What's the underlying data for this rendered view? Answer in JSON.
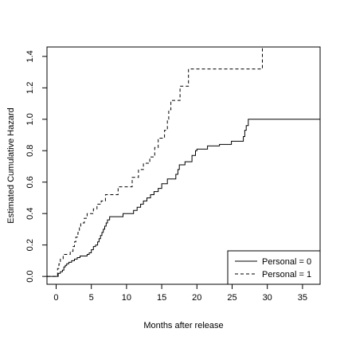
{
  "chart_data": {
    "type": "line",
    "title": "",
    "xlabel": "Months after release",
    "ylabel": "Estimated Cumulative Hazard",
    "xlim": [
      -1.3,
      37.5
    ],
    "ylim": [
      -0.05,
      1.46
    ],
    "xticks": [
      0,
      5,
      10,
      15,
      20,
      25,
      30,
      35
    ],
    "yticks": [
      0.0,
      0.2,
      0.4,
      0.6,
      0.8,
      1.0,
      1.2,
      1.4
    ],
    "xtick_labels": [
      "0",
      "5",
      "10",
      "15",
      "20",
      "25",
      "30",
      "35"
    ],
    "ytick_labels": [
      "0.0",
      "0.2",
      "0.4",
      "0.6",
      "0.8",
      "1.0",
      "1.2",
      "1.4"
    ],
    "grid": false,
    "legend_position": "bottom-right",
    "series": [
      {
        "name": "Personal = 0",
        "line_style": "solid",
        "color": "#000000",
        "step": true,
        "points": [
          [
            -1.3,
            0.0
          ],
          [
            0.2,
            0.0
          ],
          [
            0.3,
            0.02
          ],
          [
            0.6,
            0.03
          ],
          [
            0.9,
            0.04
          ],
          [
            1.1,
            0.06
          ],
          [
            1.3,
            0.07
          ],
          [
            1.5,
            0.08
          ],
          [
            1.8,
            0.09
          ],
          [
            2.2,
            0.1
          ],
          [
            2.6,
            0.11
          ],
          [
            3.0,
            0.12
          ],
          [
            3.4,
            0.13
          ],
          [
            4.4,
            0.14
          ],
          [
            4.7,
            0.15
          ],
          [
            5.0,
            0.17
          ],
          [
            5.3,
            0.19
          ],
          [
            5.6,
            0.2
          ],
          [
            5.9,
            0.22
          ],
          [
            6.1,
            0.24
          ],
          [
            6.3,
            0.26
          ],
          [
            6.5,
            0.28
          ],
          [
            6.7,
            0.3
          ],
          [
            6.9,
            0.32
          ],
          [
            7.1,
            0.34
          ],
          [
            7.3,
            0.36
          ],
          [
            7.6,
            0.38
          ],
          [
            9.5,
            0.4
          ],
          [
            11.0,
            0.42
          ],
          [
            11.5,
            0.44
          ],
          [
            12.0,
            0.46
          ],
          [
            12.4,
            0.48
          ],
          [
            12.9,
            0.5
          ],
          [
            13.4,
            0.52
          ],
          [
            13.9,
            0.54
          ],
          [
            14.5,
            0.56
          ],
          [
            15.0,
            0.59
          ],
          [
            15.8,
            0.62
          ],
          [
            17.0,
            0.65
          ],
          [
            17.3,
            0.68
          ],
          [
            17.5,
            0.71
          ],
          [
            18.3,
            0.73
          ],
          [
            19.3,
            0.77
          ],
          [
            19.8,
            0.8
          ],
          [
            20.0,
            0.81
          ],
          [
            21.5,
            0.83
          ],
          [
            23.2,
            0.84
          ],
          [
            24.9,
            0.86
          ],
          [
            26.6,
            0.89
          ],
          [
            26.8,
            0.93
          ],
          [
            27.0,
            0.96
          ],
          [
            27.3,
            1.0
          ],
          [
            37.5,
            1.0
          ]
        ]
      },
      {
        "name": "Personal = 1",
        "line_style": "dashed",
        "color": "#000000",
        "step": true,
        "points": [
          [
            -1.3,
            0.0
          ],
          [
            0.0,
            0.0
          ],
          [
            0.2,
            0.05
          ],
          [
            0.4,
            0.08
          ],
          [
            0.6,
            0.11
          ],
          [
            1.0,
            0.14
          ],
          [
            2.0,
            0.16
          ],
          [
            2.4,
            0.19
          ],
          [
            2.6,
            0.22
          ],
          [
            2.8,
            0.25
          ],
          [
            3.1,
            0.28
          ],
          [
            3.3,
            0.31
          ],
          [
            3.5,
            0.34
          ],
          [
            4.0,
            0.37
          ],
          [
            4.4,
            0.4
          ],
          [
            5.3,
            0.43
          ],
          [
            5.8,
            0.46
          ],
          [
            6.4,
            0.48
          ],
          [
            7.0,
            0.52
          ],
          [
            8.8,
            0.57
          ],
          [
            10.8,
            0.63
          ],
          [
            11.7,
            0.68
          ],
          [
            12.4,
            0.72
          ],
          [
            13.3,
            0.76
          ],
          [
            14.0,
            0.82
          ],
          [
            14.5,
            0.88
          ],
          [
            15.4,
            0.93
          ],
          [
            15.8,
            1.0
          ],
          [
            16.0,
            1.06
          ],
          [
            16.3,
            1.12
          ],
          [
            17.6,
            1.21
          ],
          [
            18.8,
            1.32
          ],
          [
            29.3,
            1.46
          ]
        ]
      }
    ]
  }
}
